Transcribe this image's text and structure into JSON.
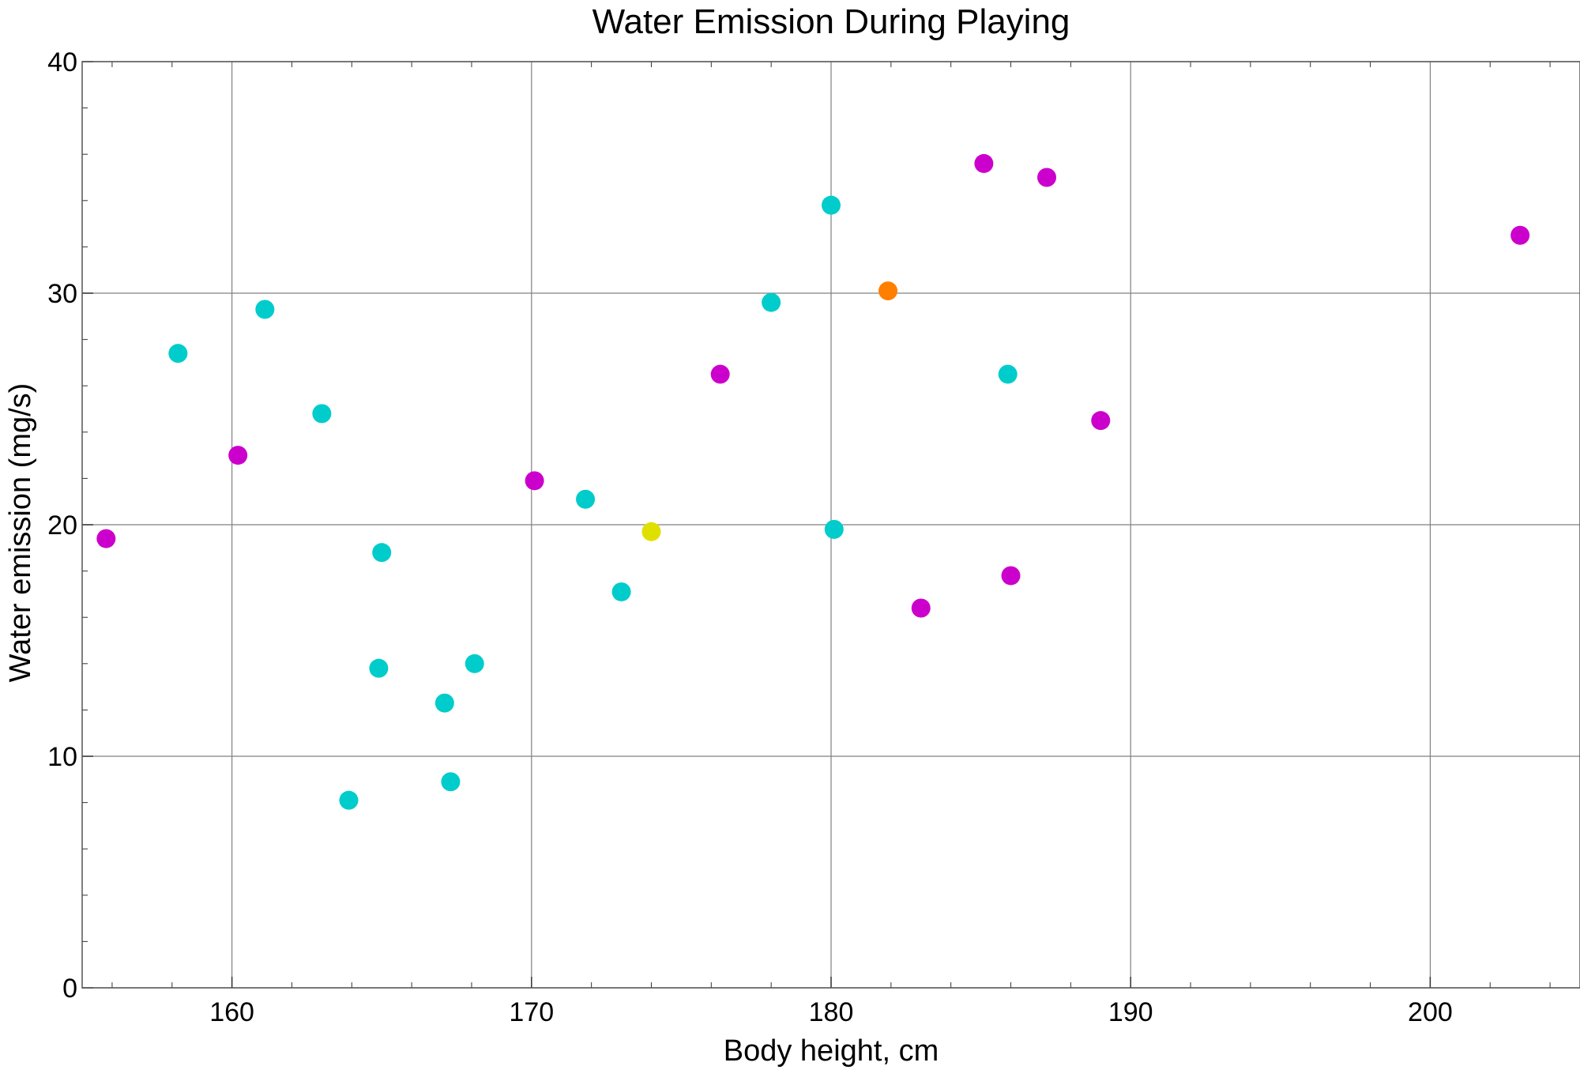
{
  "chart_data": {
    "type": "scatter",
    "title": "Water Emission During Playing",
    "xlabel": "Body height,  cm",
    "ylabel": "Water emission (mg/s)",
    "xlim": [
      155,
      205
    ],
    "ylim": [
      0,
      40
    ],
    "grid": true,
    "legend": "none",
    "x_ticks": [
      {
        "value": 160,
        "label": "160"
      },
      {
        "value": 170,
        "label": "170"
      },
      {
        "value": 180,
        "label": "180"
      },
      {
        "value": 190,
        "label": "190"
      },
      {
        "value": 200,
        "label": "200"
      }
    ],
    "y_ticks": [
      {
        "value": 0,
        "label": "0"
      },
      {
        "value": 10,
        "label": "10"
      },
      {
        "value": 20,
        "label": "20"
      },
      {
        "value": 30,
        "label": "30"
      },
      {
        "value": 40,
        "label": "40"
      }
    ],
    "colors": {
      "cyan": "#00CCCC",
      "magenta": "#CC00CC",
      "yellow": "#E0E000",
      "orange": "#FF7F00",
      "grid": "#808080",
      "frame": "#555555"
    },
    "points": [
      {
        "x": 158.2,
        "y": 27.4,
        "color": "#00CCCC"
      },
      {
        "x": 161.1,
        "y": 29.3,
        "color": "#00CCCC"
      },
      {
        "x": 163.0,
        "y": 24.8,
        "color": "#00CCCC"
      },
      {
        "x": 165.0,
        "y": 18.8,
        "color": "#00CCCC"
      },
      {
        "x": 164.9,
        "y": 13.8,
        "color": "#00CCCC"
      },
      {
        "x": 163.9,
        "y": 8.1,
        "color": "#00CCCC"
      },
      {
        "x": 167.1,
        "y": 12.3,
        "color": "#00CCCC"
      },
      {
        "x": 167.3,
        "y": 8.9,
        "color": "#00CCCC"
      },
      {
        "x": 168.1,
        "y": 14.0,
        "color": "#00CCCC"
      },
      {
        "x": 171.8,
        "y": 21.1,
        "color": "#00CCCC"
      },
      {
        "x": 173.0,
        "y": 17.1,
        "color": "#00CCCC"
      },
      {
        "x": 178.0,
        "y": 29.6,
        "color": "#00CCCC"
      },
      {
        "x": 180.0,
        "y": 33.8,
        "color": "#00CCCC"
      },
      {
        "x": 180.1,
        "y": 19.8,
        "color": "#00CCCC"
      },
      {
        "x": 185.9,
        "y": 26.5,
        "color": "#00CCCC"
      },
      {
        "x": 155.8,
        "y": 19.4,
        "color": "#CC00CC"
      },
      {
        "x": 160.2,
        "y": 23.0,
        "color": "#CC00CC"
      },
      {
        "x": 170.1,
        "y": 21.9,
        "color": "#CC00CC"
      },
      {
        "x": 176.3,
        "y": 26.5,
        "color": "#CC00CC"
      },
      {
        "x": 183.0,
        "y": 16.4,
        "color": "#CC00CC"
      },
      {
        "x": 185.1,
        "y": 35.6,
        "color": "#CC00CC"
      },
      {
        "x": 186.0,
        "y": 17.8,
        "color": "#CC00CC"
      },
      {
        "x": 187.2,
        "y": 35.0,
        "color": "#CC00CC"
      },
      {
        "x": 189.0,
        "y": 24.5,
        "color": "#CC00CC"
      },
      {
        "x": 203.0,
        "y": 32.5,
        "color": "#CC00CC"
      },
      {
        "x": 174.0,
        "y": 19.7,
        "color": "#E0E000"
      },
      {
        "x": 181.9,
        "y": 30.1,
        "color": "#FF7F00"
      }
    ]
  }
}
